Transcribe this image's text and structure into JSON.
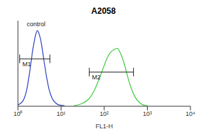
{
  "chart_data": {
    "type": "line",
    "title": "A2058",
    "x_label": "FL1-H",
    "log": "x",
    "xlim": [
      1,
      10000
    ],
    "xticks": [
      {
        "value": 1,
        "label": "10⁰"
      },
      {
        "value": 10,
        "label": "10¹"
      },
      {
        "value": 100,
        "label": "10²"
      },
      {
        "value": 1000,
        "label": "10³"
      },
      {
        "value": 10000,
        "label": "10⁴"
      }
    ],
    "ylim": [
      0,
      130
    ],
    "tick_labels": "x",
    "grid": false,
    "series": [
      {
        "name": "control",
        "color": "#2a3fc0",
        "x": [
          1.0,
          1.3,
          1.6,
          1.9,
          2.2,
          2.5,
          2.8,
          3.1,
          3.5,
          4.0,
          4.6,
          5.3,
          6.2,
          7.5,
          9.0,
          12.0
        ],
        "values": [
          2,
          8,
          25,
          55,
          85,
          105,
          115,
          110,
          95,
          70,
          45,
          25,
          12,
          5,
          2,
          1
        ]
      },
      {
        "name": "A2058",
        "color": "#3ccc3c",
        "x": [
          20,
          30,
          45,
          60,
          80,
          100,
          120,
          140,
          170,
          200,
          240,
          290,
          350,
          420,
          520,
          650,
          800,
          1000
        ],
        "values": [
          1,
          4,
          12,
          25,
          45,
          62,
          75,
          82,
          86,
          88,
          80,
          65,
          45,
          28,
          14,
          6,
          2,
          1
        ]
      }
    ],
    "annotations": [
      {
        "text": "control",
        "x": 1.6,
        "y": 122
      }
    ],
    "gates": [
      {
        "label": "M1",
        "x": [
          1.1,
          5.5
        ],
        "y": 72
      },
      {
        "label": "M2",
        "x": [
          45,
          480
        ],
        "y": 52
      }
    ]
  }
}
